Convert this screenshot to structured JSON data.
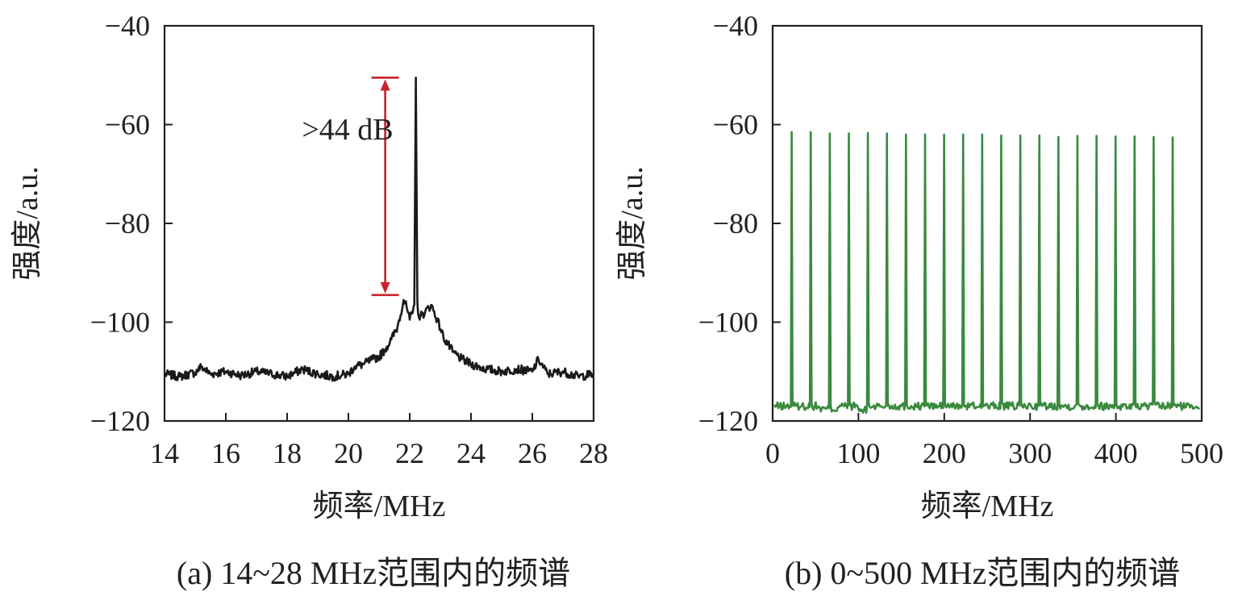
{
  "chart_data": [
    {
      "type": "line",
      "xlabel": "频率/MHz",
      "ylabel": "强度/a.u.",
      "caption": "(a) 14~28 MHz范围内的频谱",
      "xlim": [
        14,
        28
      ],
      "ylim": [
        -120,
        -40
      ],
      "xticks": [
        14,
        16,
        18,
        20,
        22,
        24,
        26,
        28
      ],
      "yticks": [
        -40,
        -60,
        -80,
        -100,
        -120
      ],
      "xtick_labels": [
        "14",
        "16",
        "18",
        "20",
        "22",
        "24",
        "26",
        "28"
      ],
      "ytick_labels": [
        "−40",
        "−60",
        "−80",
        "−100",
        "−120"
      ],
      "color": "#1a1a1a",
      "series": [
        {
          "x": [
            14.0,
            14.5,
            15.0,
            15.2,
            15.5,
            16.0,
            16.5,
            17.0,
            17.5,
            18.0,
            18.5,
            19.0,
            19.5,
            20.0,
            20.2,
            20.5,
            20.8,
            21.0,
            21.2,
            21.4,
            21.6,
            21.8,
            21.9,
            22.0,
            22.1,
            22.15,
            22.2,
            22.25,
            22.3,
            22.4,
            22.5,
            22.7,
            22.9,
            23.1,
            23.4,
            23.7,
            24.0,
            24.5,
            25.0,
            25.5,
            26.0,
            26.2,
            26.5,
            27.0,
            27.5,
            28.0
          ],
          "y": [
            -110.5,
            -111.0,
            -110.2,
            -109.0,
            -110.5,
            -110.0,
            -110.8,
            -110.0,
            -110.5,
            -111.0,
            -109.5,
            -110.5,
            -111.0,
            -110.5,
            -109.0,
            -108.5,
            -107.5,
            -107.0,
            -105.5,
            -103.5,
            -101.0,
            -95.5,
            -97.0,
            -99.5,
            -98.0,
            -96.5,
            -50.5,
            -96.0,
            -99.0,
            -98.5,
            -98.0,
            -96.5,
            -99.5,
            -103.0,
            -106.0,
            -107.5,
            -108.5,
            -109.5,
            -110.0,
            -109.5,
            -110.0,
            -107.5,
            -110.5,
            -110.0,
            -111.0,
            -110.5
          ]
        }
      ],
      "annotation": {
        "text": ">44 dB",
        "x": 21.2,
        "y_top": -50.5,
        "y_bottom": -94.5,
        "color": "#c8202a"
      }
    },
    {
      "type": "line",
      "xlabel": "频率/MHz",
      "ylabel": "强度/a.u.",
      "caption": "(b) 0~500 MHz范围内的频谱",
      "xlim": [
        0,
        500
      ],
      "ylim": [
        -120,
        -40
      ],
      "xticks": [
        0,
        100,
        200,
        300,
        400,
        500
      ],
      "yticks": [
        -40,
        -60,
        -80,
        -100,
        -120
      ],
      "xtick_labels": [
        "0",
        "100",
        "200",
        "300",
        "400",
        "500"
      ],
      "ytick_labels": [
        "−40",
        "−60",
        "−80",
        "−100",
        "−120"
      ],
      "color": "#3a8a3e",
      "baseline": -117.0,
      "series": [
        {
          "peak_x": [
            22.2,
            44.4,
            66.6,
            88.8,
            111.0,
            133.2,
            155.4,
            177.6,
            199.8,
            222.0,
            244.2,
            266.4,
            288.6,
            310.8,
            333.0,
            355.2,
            377.4,
            399.6,
            421.8,
            444.0,
            466.2
          ],
          "peak_y": [
            -61.5,
            -61.5,
            -61.8,
            -61.8,
            -61.7,
            -61.8,
            -62.0,
            -62.0,
            -62.0,
            -62.0,
            -62.0,
            -62.2,
            -62.2,
            -62.2,
            -62.5,
            -62.3,
            -62.3,
            -62.4,
            -62.4,
            -62.5,
            -62.6
          ]
        }
      ]
    }
  ]
}
